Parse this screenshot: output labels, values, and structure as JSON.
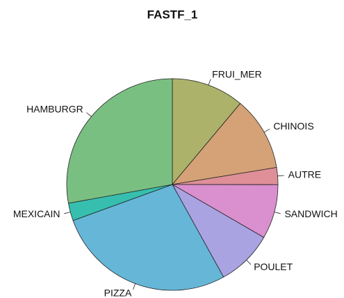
{
  "chart_data": {
    "type": "pie",
    "title": "FASTF_1",
    "categories": [
      "FRUI_MER",
      "CHINOIS",
      "AUTRE",
      "SANDWICH",
      "POULET",
      "PIZZA",
      "MEXICAIN",
      "HAMBURGR"
    ],
    "values": [
      11.1,
      11.3,
      2.6,
      8.3,
      8.6,
      27.5,
      2.7,
      27.8
    ],
    "colors": [
      "#adb26a",
      "#d4a276",
      "#de8f97",
      "#da8fce",
      "#aaa3e2",
      "#66b6d7",
      "#36bfae",
      "#7abf82"
    ]
  }
}
